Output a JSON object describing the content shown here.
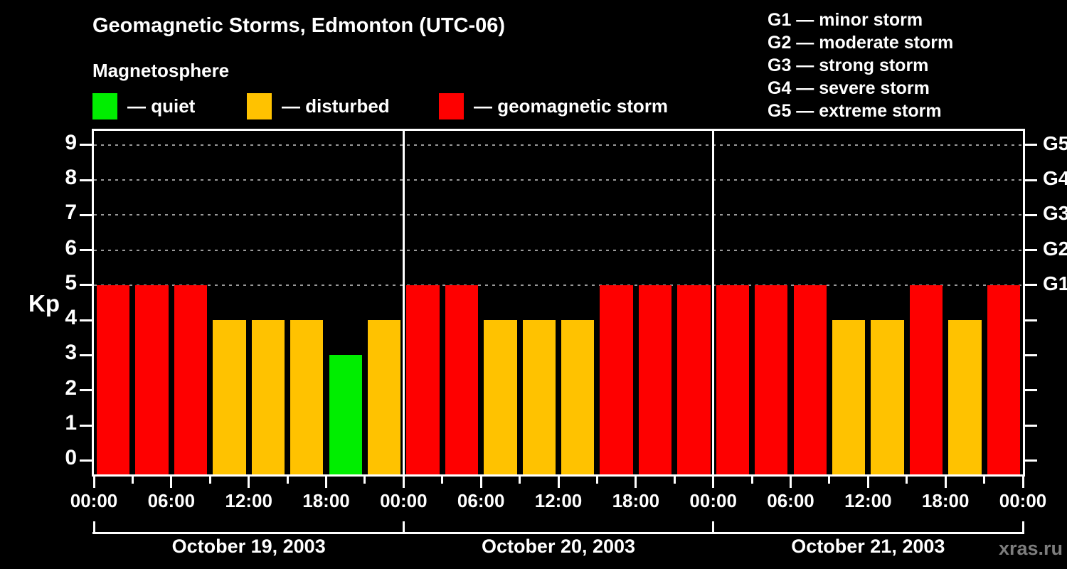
{
  "header": {
    "title": "Geomagnetic Storms, Edmonton (UTC-06)",
    "subtitle": "Magnetosphere"
  },
  "legend": {
    "items": [
      {
        "label": "— quiet",
        "severity": "quiet"
      },
      {
        "label": "— disturbed",
        "severity": "disturbed"
      },
      {
        "label": "— geomagnetic storm",
        "severity": "storm"
      }
    ]
  },
  "storm_scale_legend": {
    "items": [
      "G1 — minor storm",
      "G2 — moderate storm",
      "G3 — strong storm",
      "G4 — severe storm",
      "G5 — extreme storm"
    ]
  },
  "watermark": "xras.ru",
  "chart_data": {
    "type": "bar",
    "title": "Geomagnetic Storms, Edmonton (UTC-06)",
    "ylabel": "Kp",
    "ylim": [
      -0.4,
      9.4
    ],
    "yticks": [
      0,
      1,
      2,
      3,
      4,
      5,
      6,
      7,
      8,
      9
    ],
    "grid_levels": [
      5,
      6,
      7,
      8,
      9
    ],
    "grid_style": "dashed",
    "right_axis": [
      {
        "kp": 9,
        "label": "G5"
      },
      {
        "kp": 8,
        "label": "G4"
      },
      {
        "kp": 7,
        "label": "G3"
      },
      {
        "kp": 6,
        "label": "G2"
      },
      {
        "kp": 5,
        "label": "G1"
      }
    ],
    "x_tick_labels": [
      "00:00",
      "06:00",
      "12:00",
      "18:00",
      "00:00",
      "06:00",
      "12:00",
      "18:00",
      "00:00",
      "06:00",
      "12:00",
      "18:00",
      "00:00"
    ],
    "hours_per_bar": 3,
    "days": [
      {
        "label": "October 19, 2003",
        "kp_values": [
          5,
          5,
          5,
          4,
          4,
          4,
          3,
          4
        ]
      },
      {
        "label": "October 20, 2003",
        "kp_values": [
          5,
          5,
          4,
          4,
          4,
          5,
          5,
          5
        ]
      },
      {
        "label": "October 21, 2003",
        "kp_values": [
          5,
          5,
          5,
          4,
          4,
          5,
          4,
          5
        ]
      }
    ],
    "severity_colors": {
      "quiet": "#00ee00",
      "disturbed": "#ffc200",
      "storm": "#fe0000"
    },
    "severity_thresholds": {
      "quiet_max": 3,
      "disturbed_max": 4
    }
  }
}
